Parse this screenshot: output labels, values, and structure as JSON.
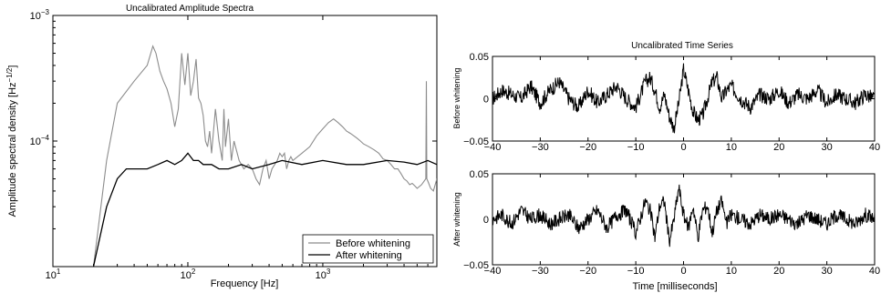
{
  "chart_data": [
    {
      "type": "line",
      "title": "Uncalibrated Amplitude Spectra",
      "xlabel": "Frequency [Hz]",
      "ylabel": "Amplitude spectral density [Hz",
      "ylabel_exp": "−1/2",
      "ylabel_tail": "]",
      "x_scale": "log",
      "y_scale": "log",
      "xlim": [
        10,
        7000
      ],
      "ylim": [
        1e-05,
        0.001
      ],
      "x_ticks": [
        {
          "value": 10,
          "base": "10",
          "exp": "1"
        },
        {
          "value": 100,
          "base": "10",
          "exp": "2"
        },
        {
          "value": 1000,
          "base": "10",
          "exp": "3"
        }
      ],
      "y_ticks": [
        {
          "value": 0.0001,
          "base": "10",
          "exp": "−4"
        },
        {
          "value": 0.001,
          "base": "10",
          "exp": "−3"
        }
      ],
      "legend_position": "bottom-right",
      "series": [
        {
          "name": "Before whitening",
          "color": "#8c8c8c",
          "x": [
            20,
            25,
            30,
            40,
            50,
            55,
            58,
            62,
            66,
            70,
            75,
            80,
            85,
            90,
            95,
            100,
            105,
            110,
            115,
            120,
            125,
            130,
            135,
            140,
            145,
            150,
            160,
            170,
            180,
            185,
            190,
            200,
            210,
            220,
            240,
            260,
            280,
            300,
            320,
            340,
            360,
            380,
            400,
            420,
            440,
            460,
            480,
            500,
            520,
            540,
            560,
            580,
            600,
            650,
            700,
            800,
            900,
            1000,
            1100,
            1200,
            1300,
            1400,
            1500,
            1600,
            1700,
            1800,
            1900,
            2000,
            2200,
            2400,
            2600,
            2800,
            3000,
            3200,
            3400,
            3600,
            3800,
            4000,
            4200,
            4400,
            4600,
            4800,
            5000,
            5400,
            5800,
            5850,
            5900,
            6000,
            6300,
            6600,
            7000
          ],
          "y": [
            1e-05,
            7e-05,
            0.0002,
            0.0003,
            0.0004,
            0.00057,
            0.0005,
            0.00036,
            0.0003,
            0.00026,
            0.0002,
            0.00013,
            0.00018,
            0.0005,
            0.00028,
            0.0005,
            0.00023,
            0.0003,
            0.00045,
            0.00022,
            0.0002,
            0.00016,
            0.0001,
            9e-05,
            0.00012,
            8e-05,
            0.00018,
            0.0001,
            7e-05,
            0.00018,
            9e-05,
            0.00015,
            7e-05,
            0.0001,
            7e-05,
            6e-05,
            6.5e-05,
            6e-05,
            5e-05,
            4.5e-05,
            6e-05,
            7e-05,
            5e-05,
            6e-05,
            6.5e-05,
            7e-05,
            8e-05,
            7.5e-05,
            8e-05,
            6e-05,
            7e-05,
            7.5e-05,
            7e-05,
            7.5e-05,
            8e-05,
            9e-05,
            0.00011,
            0.000125,
            0.00014,
            0.00015,
            0.00014,
            0.00013,
            0.00012,
            0.000115,
            0.00011,
            0.000105,
            0.0001,
            9.5e-05,
            9e-05,
            8.5e-05,
            8e-05,
            7.2e-05,
            7e-05,
            6.5e-05,
            6e-05,
            6e-05,
            5.5e-05,
            5e-05,
            4.8e-05,
            4.5e-05,
            4.6e-05,
            4.4e-05,
            4.2e-05,
            4.5e-05,
            5e-05,
            0.0003,
            5e-05,
            4.8e-05,
            4.2e-05,
            4e-05,
            5e-05
          ]
        },
        {
          "name": "After whitening",
          "color": "#000000",
          "x": [
            20,
            25,
            30,
            35,
            40,
            50,
            60,
            70,
            80,
            90,
            100,
            110,
            120,
            130,
            150,
            170,
            200,
            250,
            300,
            400,
            500,
            700,
            1000,
            1500,
            2000,
            3000,
            4000,
            5000,
            6000,
            7000
          ],
          "y": [
            1e-05,
            3e-05,
            5e-05,
            6e-05,
            6e-05,
            6e-05,
            6.5e-05,
            7e-05,
            6.5e-05,
            7e-05,
            8e-05,
            7e-05,
            7e-05,
            6.5e-05,
            6.5e-05,
            6e-05,
            6e-05,
            6.5e-05,
            6e-05,
            6.5e-05,
            7e-05,
            6.5e-05,
            7e-05,
            6.5e-05,
            6.5e-05,
            7e-05,
            6.8e-05,
            6.5e-05,
            7e-05,
            6.5e-05
          ]
        }
      ]
    },
    {
      "type": "line",
      "title": "Uncalibrated Time Series",
      "xlabel": "",
      "ylabel": "Before whitening",
      "xlim": [
        -40,
        40
      ],
      "ylim": [
        -0.05,
        0.05
      ],
      "x_ticks": [
        -40,
        -30,
        -20,
        -10,
        0,
        10,
        20,
        30,
        40
      ],
      "y_ticks": [
        -0.05,
        0,
        0.05
      ],
      "series": [
        {
          "name": "",
          "color": "#000000",
          "x": [
            -40,
            -38,
            -36,
            -34,
            -32,
            -30,
            -28,
            -26,
            -24,
            -22,
            -20,
            -18,
            -16,
            -14,
            -12,
            -10,
            -8,
            -7,
            -6,
            -5,
            -4,
            -3,
            -2,
            -1,
            0,
            1,
            2,
            3,
            4,
            5,
            6,
            7,
            8,
            9,
            10,
            12,
            14,
            16,
            18,
            20,
            22,
            24,
            26,
            28,
            30,
            32,
            34,
            36,
            38,
            40
          ],
          "y": [
            0.0,
            0.01,
            0.005,
            0.0,
            0.015,
            -0.005,
            0.01,
            0.02,
            0.0,
            -0.01,
            0.01,
            -0.005,
            0.005,
            0.015,
            0.0,
            -0.01,
            0.02,
            0.025,
            0.01,
            -0.01,
            0.005,
            -0.02,
            -0.035,
            -0.005,
            0.035,
            0.01,
            -0.015,
            -0.025,
            -0.02,
            0.0,
            0.02,
            0.025,
            0.0,
            0.01,
            0.015,
            0.0,
            -0.01,
            0.005,
            0.0,
            0.01,
            -0.005,
            0.005,
            0.0,
            0.01,
            -0.005,
            0.005,
            0.0,
            -0.005,
            0.005,
            0.0
          ]
        }
      ]
    },
    {
      "type": "line",
      "title": "",
      "xlabel": "Time [milliseconds]",
      "ylabel": "After whitening",
      "xlim": [
        -40,
        40
      ],
      "ylim": [
        -0.05,
        0.05
      ],
      "x_ticks": [
        -40,
        -30,
        -20,
        -10,
        0,
        10,
        20,
        30,
        40
      ],
      "y_ticks": [
        -0.05,
        0,
        0.05
      ],
      "series": [
        {
          "name": "",
          "color": "#000000",
          "x": [
            -40,
            -38,
            -36,
            -34,
            -32,
            -30,
            -28,
            -26,
            -24,
            -22,
            -20,
            -18,
            -16,
            -14,
            -12,
            -10,
            -8,
            -7,
            -6,
            -5,
            -4,
            -3,
            -2,
            -1,
            0,
            1,
            2,
            3,
            4,
            5,
            6,
            7,
            8,
            9,
            10,
            12,
            14,
            16,
            18,
            20,
            22,
            24,
            26,
            28,
            30,
            32,
            34,
            36,
            38,
            40
          ],
          "y": [
            0.0,
            0.005,
            -0.005,
            0.01,
            0.0,
            0.005,
            -0.005,
            0.0,
            0.005,
            -0.01,
            0.0,
            0.01,
            -0.01,
            0.005,
            0.01,
            -0.015,
            0.02,
            0.01,
            -0.02,
            0.015,
            0.02,
            -0.025,
            0.0,
            0.035,
            0.005,
            -0.01,
            0.015,
            -0.02,
            0.01,
            0.015,
            -0.015,
            0.01,
            0.02,
            -0.005,
            0.005,
            0.0,
            -0.005,
            0.005,
            0.0,
            0.005,
            0.0,
            -0.005,
            0.005,
            0.0,
            -0.005,
            0.005,
            0.0,
            -0.005,
            0.005,
            0.0
          ]
        }
      ]
    }
  ]
}
